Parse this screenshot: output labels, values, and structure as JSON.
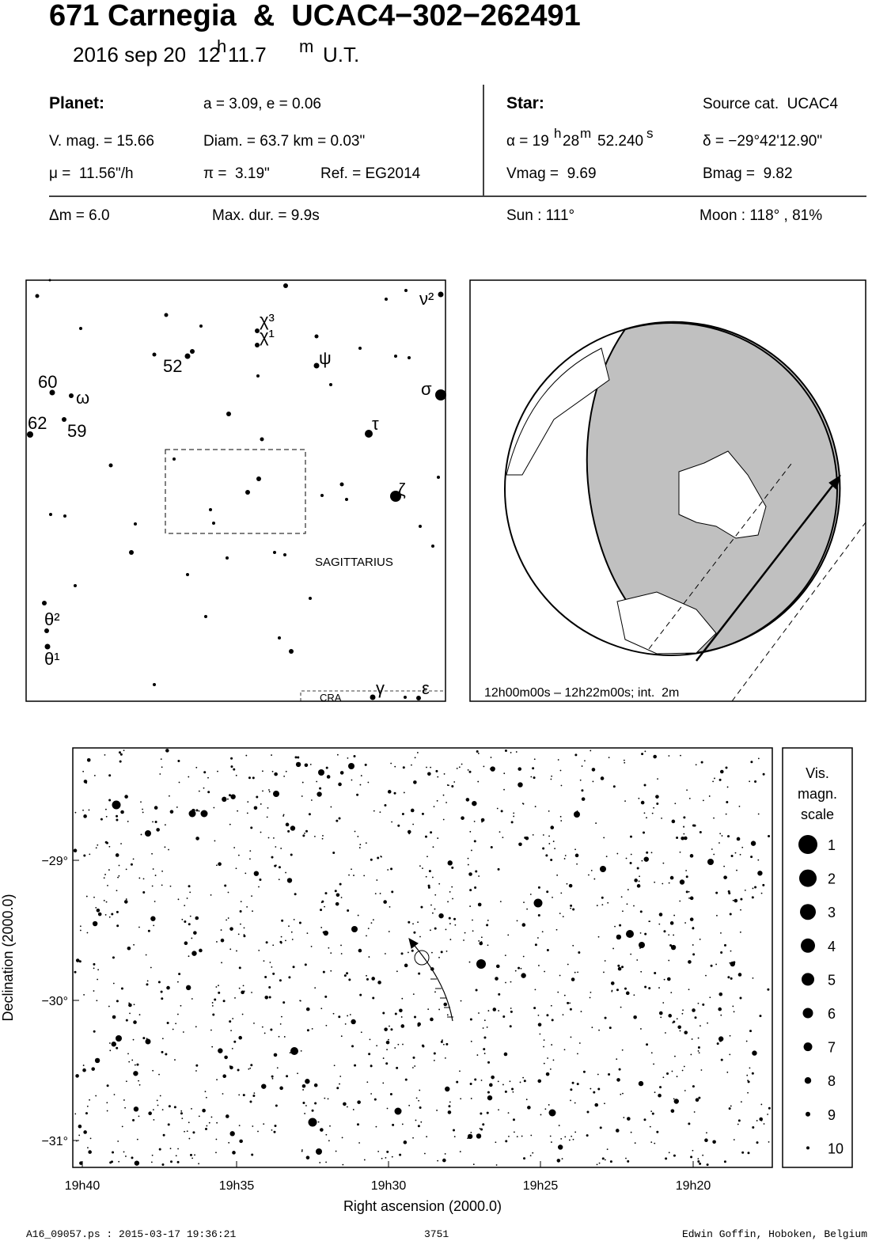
{
  "header": {
    "title": "671 Carnegia  &  UCAC4−302−262491",
    "date": {
      "day": "2016 sep 20  12",
      "h": "h",
      "min": "11.7",
      "m": "m",
      "ut": "U.T."
    }
  },
  "planet": {
    "label": "Planet:",
    "orbit": "a = 3.09, e = 0.06",
    "vmag": "V. mag. = 15.66",
    "diam": "Diam. = 63.7 km = 0.03\"",
    "mu": "μ =  11.56\"/h",
    "pi": "π =  3.19\"",
    "ref": "Ref. = EG2014"
  },
  "star": {
    "label": "Star:",
    "source": "Source cat.  UCAC4",
    "ra": {
      "h_val": "α = 19",
      "h": "h",
      "m_val": "28",
      "m": "m",
      "s_val": "52.240",
      "s": "s"
    },
    "dec": "δ = −29°42'12.90\"",
    "vmag": "Vmag =  9.69",
    "bmag": "Bmag =  9.82"
  },
  "event": {
    "dm": "Δm = 6.0",
    "maxdur": "Max. dur. = 9.9s",
    "sun": "Sun : 111°",
    "moon": "Moon : 118° , 81%"
  },
  "finder": {
    "labels": [
      "ν²",
      "χ³",
      "χ¹",
      "52",
      "ψ",
      "60",
      "ω",
      "σ",
      "62",
      "59",
      "τ",
      "ζ",
      "θ²",
      "θ¹",
      "γ",
      "ε"
    ],
    "constellation": "SAGITTARIUS",
    "cra": "CRA"
  },
  "globe": {
    "caption": "12h00m00s – 12h22m00s; int.  2m"
  },
  "star_chart": {
    "y_ticks": [
      "−29°",
      "−30°",
      "−31°"
    ],
    "x_ticks": [
      "19h40",
      "19h35",
      "19h30",
      "19h25",
      "19h20"
    ],
    "y_label": "Declination (2000.0)",
    "x_label": "Right ascension (2000.0)"
  },
  "legend": {
    "title": [
      "Vis.",
      "magn.",
      "scale"
    ],
    "magnitudes": [
      "1",
      "2",
      "3",
      "4",
      "5",
      "6",
      "7",
      "8",
      "9",
      "10"
    ]
  },
  "footer": {
    "file": "A16_09057.ps : 2015-03-17 19:36:21",
    "page": "3751",
    "author": "Edwin Goffin, Hoboken, Belgium"
  }
}
